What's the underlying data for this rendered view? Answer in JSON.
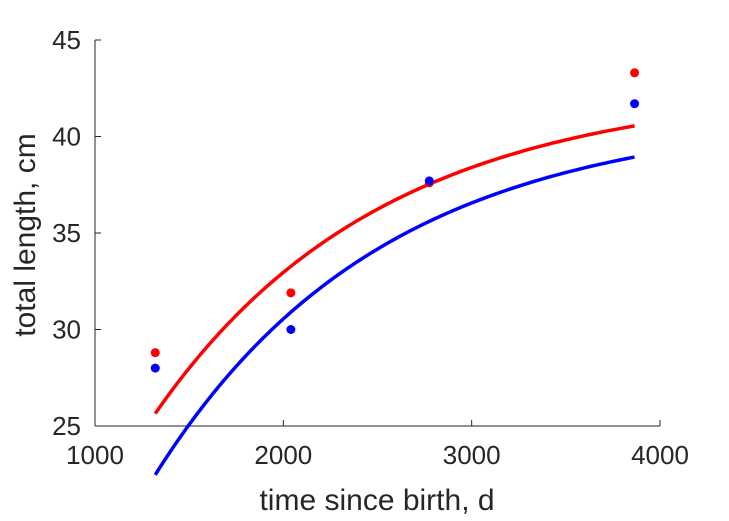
{
  "chart_data": {
    "type": "scatter",
    "title": "",
    "xlabel": "time since birth, d",
    "ylabel": "total length, cm",
    "xlim": [
      1000,
      4000
    ],
    "ylim": [
      25,
      45
    ],
    "xticks": [
      1000,
      2000,
      3000,
      4000
    ],
    "yticks": [
      25,
      30,
      35,
      40,
      45
    ],
    "xtick_labels": [
      "1000",
      "2000",
      "3000",
      "4000"
    ],
    "ytick_labels": [
      "25",
      "30",
      "35",
      "40",
      "45"
    ],
    "grid": false,
    "legend": "none",
    "series": [
      {
        "color": "#ff0000",
        "points": [
          {
            "x": 1320,
            "y": 28.8
          },
          {
            "x": 2040,
            "y": 31.9
          },
          {
            "x": 2775,
            "y": 37.6
          },
          {
            "x": 3865,
            "y": 43.3
          }
        ],
        "fit": {
          "Linf": 42.6,
          "k": 0.00083,
          "t0": 210,
          "x_range": [
            1320,
            3865
          ]
        }
      },
      {
        "color": "#0000ff",
        "points": [
          {
            "x": 1320,
            "y": 28.0
          },
          {
            "x": 2040,
            "y": 30.0
          },
          {
            "x": 2775,
            "y": 37.7
          },
          {
            "x": 3865,
            "y": 41.7
          }
        ],
        "fit": {
          "Linf": 41.2,
          "k": 0.00083,
          "t0": 370,
          "x_range": [
            1320,
            3865
          ]
        }
      }
    ]
  }
}
